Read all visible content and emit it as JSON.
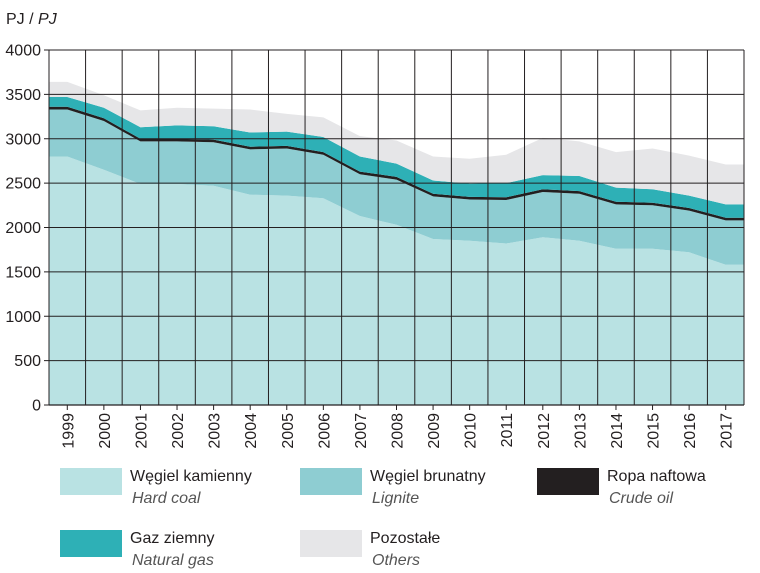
{
  "chart_data": {
    "type": "area",
    "stacked": true,
    "title": "",
    "ylabel_pl": "PJ",
    "ylabel_en": "PJ",
    "ylabel_sep": " / ",
    "xlabel": "",
    "ylim": [
      0,
      4000
    ],
    "yticks": [
      0,
      500,
      1000,
      1500,
      2000,
      2500,
      3000,
      3500,
      4000
    ],
    "grid": true,
    "categories": [
      "1999",
      "2000",
      "2001",
      "2002",
      "2003",
      "2004",
      "2005",
      "2006",
      "2007",
      "2008",
      "2009",
      "2010",
      "2011",
      "2012",
      "2013",
      "2014",
      "2015",
      "2016",
      "2017"
    ],
    "series": [
      {
        "key": "hard_coal",
        "name": "Węgiel kamienny",
        "name_en": "Hard coal",
        "color": "#b9e2e3",
        "values": [
          2800,
          2650,
          2490,
          2490,
          2470,
          2370,
          2360,
          2330,
          2130,
          2030,
          1870,
          1850,
          1820,
          1890,
          1850,
          1760,
          1760,
          1720,
          1580
        ]
      },
      {
        "key": "lignite",
        "name": "Węgiel brunatny",
        "name_en": "Lignite",
        "color": "#8ecdd2",
        "values": [
          530,
          550,
          480,
          480,
          490,
          510,
          530,
          490,
          470,
          510,
          480,
          465,
          490,
          510,
          530,
          500,
          490,
          470,
          500
        ]
      },
      {
        "key": "crude_oil",
        "name": "Ropa naftowa",
        "name_en": "Crude oil",
        "color": "#231f20",
        "values": [
          30,
          30,
          30,
          30,
          30,
          30,
          30,
          30,
          30,
          30,
          30,
          30,
          30,
          30,
          30,
          30,
          30,
          30,
          30
        ]
      },
      {
        "key": "natural_gas",
        "name": "Gaz ziemny",
        "name_en": "Natural gas",
        "color": "#2eb0b6",
        "values": [
          110,
          120,
          130,
          150,
          150,
          160,
          160,
          170,
          170,
          150,
          150,
          150,
          160,
          160,
          170,
          160,
          150,
          140,
          150
        ]
      },
      {
        "key": "others",
        "name": "Pozostałe",
        "name_en": "Others",
        "color": "#e6e6e8",
        "values": [
          170,
          140,
          190,
          200,
          200,
          260,
          200,
          220,
          230,
          260,
          270,
          280,
          320,
          420,
          390,
          400,
          460,
          450,
          450
        ]
      }
    ]
  },
  "legend": [
    {
      "key": "hard_coal",
      "pl": "Węgiel kamienny",
      "en": "Hard coal"
    },
    {
      "key": "lignite",
      "pl": "Węgiel brunatny",
      "en": "Lignite"
    },
    {
      "key": "crude_oil",
      "pl": "Ropa naftowa",
      "en": "Crude oil"
    },
    {
      "key": "natural_gas",
      "pl": "Gaz ziemny",
      "en": "Natural gas"
    },
    {
      "key": "others",
      "pl": "Pozostałe",
      "en": "Others"
    }
  ],
  "colors": {
    "grid": "#231f20",
    "axis": "#231f20"
  }
}
